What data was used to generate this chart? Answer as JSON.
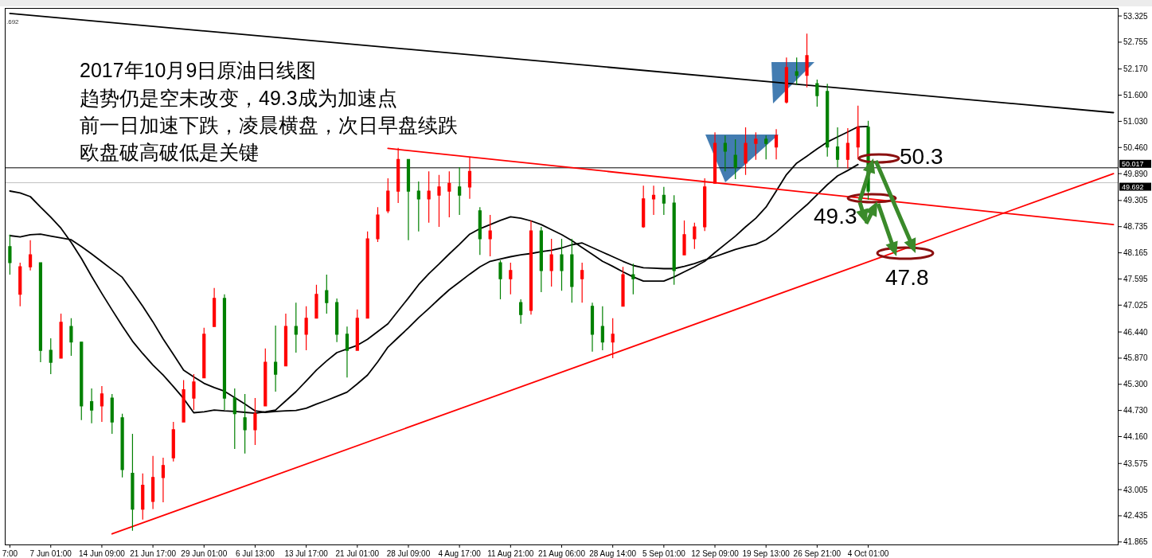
{
  "chart_data": {
    "type": "candlestick",
    "title": "2017年10月9日原油日线图",
    "annotations": [
      "趋势仍是空未改变，49.3成为加速点",
      "前一日加速下跌，凌晨横盘，次日早盘续跌",
      "欧盘破高破低是关键",
      "50.3",
      "49.3",
      "47.8",
      ".692"
    ],
    "categories": [
      "7:00",
      null,
      null,
      null,
      "7 Jun 01:00",
      null,
      null,
      null,
      null,
      "14 Jun 09:00",
      null,
      null,
      null,
      null,
      "21 Jun 17:00",
      null,
      null,
      null,
      null,
      "29 Jun 01:00",
      null,
      null,
      null,
      null,
      "6 Jul 13:00",
      null,
      null,
      null,
      null,
      "13 Jul 17:00",
      null,
      null,
      null,
      null,
      "21 Jul 01:00",
      null,
      null,
      null,
      null,
      "28 Jul 09:00",
      null,
      null,
      null,
      null,
      "4 Aug 17:00",
      null,
      null,
      null,
      null,
      "11 Aug 21:00",
      null,
      null,
      null,
      null,
      "21 Aug 06:00",
      null,
      null,
      null,
      null,
      "28 Aug 14:00",
      null,
      null,
      null,
      null,
      "5 Sep 01:00",
      null,
      null,
      null,
      null,
      "12 Sep 09:00",
      null,
      null,
      null,
      null,
      "19 Sep 13:00",
      null,
      null,
      null,
      null,
      "26 Sep 21:00",
      null,
      null,
      null,
      null,
      "4 Oct 01:00",
      null,
      null,
      null,
      null,
      null,
      null,
      null,
      null,
      null,
      null,
      null,
      null,
      null,
      null,
      null,
      null,
      null,
      null,
      null,
      null,
      null,
      null,
      null,
      null
    ],
    "ohlc": [
      [
        48.3,
        48.56,
        47.69,
        47.95
      ],
      [
        47.26,
        47.95,
        47.0,
        47.86
      ],
      [
        47.86,
        48.44,
        47.78,
        48.12
      ],
      [
        47.95,
        47.95,
        45.78,
        46.04
      ],
      [
        46.04,
        46.3,
        45.52,
        45.78
      ],
      [
        45.87,
        46.84,
        45.87,
        46.65
      ],
      [
        46.56,
        46.74,
        45.92,
        46.22
      ],
      [
        46.22,
        46.22,
        44.52,
        44.83
      ],
      [
        44.92,
        45.21,
        44.45,
        44.74
      ],
      [
        44.83,
        45.26,
        44.48,
        45.09
      ],
      [
        45.0,
        45.09,
        44.22,
        44.48
      ],
      [
        44.57,
        44.66,
        43.27,
        43.44
      ],
      [
        43.36,
        44.22,
        42.11,
        42.58
      ],
      [
        42.58,
        43.36,
        42.35,
        43.1
      ],
      [
        42.75,
        43.74,
        42.58,
        43.27
      ],
      [
        43.27,
        43.7,
        42.73,
        43.53
      ],
      [
        43.7,
        44.48,
        43.62,
        44.31
      ],
      [
        44.48,
        45.39,
        44.48,
        45.18
      ],
      [
        45.0,
        45.52,
        44.74,
        45.35
      ],
      [
        45.44,
        46.53,
        45.44,
        46.39
      ],
      [
        46.56,
        47.4,
        46.56,
        47.17
      ],
      [
        47.17,
        47.26,
        44.74,
        45.0
      ],
      [
        45.0,
        45.21,
        43.89,
        44.66
      ],
      [
        44.57,
        45.09,
        43.79,
        44.31
      ],
      [
        44.31,
        45.0,
        43.98,
        44.66
      ],
      [
        44.83,
        46.08,
        44.83,
        45.78
      ],
      [
        45.78,
        46.58,
        45.14,
        45.52
      ],
      [
        45.7,
        46.84,
        45.7,
        46.56
      ],
      [
        46.56,
        47.08,
        45.99,
        46.39
      ],
      [
        46.39,
        47.0,
        46.04,
        46.74
      ],
      [
        46.74,
        47.47,
        46.74,
        47.26
      ],
      [
        47.34,
        47.69,
        46.84,
        47.08
      ],
      [
        47.08,
        47.17,
        46.22,
        46.39
      ],
      [
        46.39,
        46.56,
        45.45,
        46.04
      ],
      [
        46.04,
        46.93,
        46.04,
        46.74
      ],
      [
        46.74,
        48.63,
        46.74,
        48.47
      ],
      [
        48.47,
        49.16,
        48.4,
        48.99
      ],
      [
        49.08,
        49.79,
        49.03,
        49.51
      ],
      [
        49.51,
        50.45,
        49.25,
        50.2
      ],
      [
        50.2,
        50.2,
        48.44,
        49.51
      ],
      [
        49.51,
        49.72,
        48.63,
        49.34
      ],
      [
        49.34,
        49.94,
        48.82,
        49.51
      ],
      [
        49.42,
        49.86,
        48.73,
        49.6
      ],
      [
        49.51,
        49.94,
        48.94,
        49.68
      ],
      [
        49.6,
        50.03,
        48.99,
        49.42
      ],
      [
        49.6,
        50.26,
        49.34,
        49.94
      ],
      [
        49.08,
        49.16,
        48.12,
        48.47
      ],
      [
        48.47,
        48.99,
        48.09,
        48.64
      ],
      [
        47.95,
        48.0,
        47.15,
        47.6
      ],
      [
        47.6,
        47.95,
        47.26,
        47.78
      ],
      [
        47.08,
        47.15,
        46.62,
        46.82
      ],
      [
        46.91,
        48.87,
        46.82,
        48.64
      ],
      [
        48.64,
        48.73,
        47.31,
        47.78
      ],
      [
        47.78,
        48.47,
        47.43,
        48.12
      ],
      [
        48.12,
        48.47,
        47.34,
        47.78
      ],
      [
        48.12,
        48.47,
        47.08,
        47.43
      ],
      [
        47.6,
        47.95,
        47.08,
        47.78
      ],
      [
        47.0,
        47.08,
        46.01,
        46.39
      ],
      [
        46.56,
        47.0,
        46.04,
        46.22
      ],
      [
        46.22,
        46.74,
        45.87,
        46.39
      ],
      [
        47.0,
        47.86,
        47.0,
        47.69
      ],
      [
        47.69,
        47.93,
        47.26,
        47.6
      ],
      [
        48.73,
        49.63,
        48.71,
        49.34
      ],
      [
        49.34,
        49.63,
        48.99,
        49.42
      ],
      [
        49.42,
        49.6,
        48.99,
        49.25
      ],
      [
        49.25,
        49.42,
        47.47,
        47.78
      ],
      [
        48.12,
        48.87,
        48.12,
        48.56
      ],
      [
        48.47,
        48.82,
        48.25,
        48.73
      ],
      [
        48.73,
        49.79,
        48.64,
        49.6
      ],
      [
        49.68,
        50.79,
        49.68,
        50.55
      ],
      [
        50.55,
        50.72,
        49.94,
        50.38
      ],
      [
        50.29,
        50.64,
        49.77,
        50.03
      ],
      [
        50.12,
        50.9,
        49.86,
        50.55
      ],
      [
        50.55,
        50.79,
        50.19,
        50.64
      ],
      [
        50.64,
        50.72,
        50.2,
        50.55
      ],
      [
        50.47,
        50.86,
        50.2,
        50.72
      ],
      [
        51.45,
        52.42,
        51.42,
        52.2
      ],
      [
        52.11,
        52.42,
        51.82,
        52.03
      ],
      [
        52.03,
        52.94,
        51.77,
        52.46
      ],
      [
        51.85,
        51.94,
        51.35,
        51.59
      ],
      [
        51.68,
        51.85,
        50.26,
        50.47
      ],
      [
        50.47,
        50.9,
        50.03,
        50.2
      ],
      [
        50.2,
        50.88,
        50.0,
        50.55
      ],
      [
        50.47,
        51.37,
        50.2,
        50.9
      ],
      [
        50.9,
        51.04,
        49.32,
        49.51
      ],
      null,
      null,
      null,
      null,
      null,
      null,
      null,
      null,
      null,
      null,
      null,
      null,
      null,
      null,
      null,
      null,
      null,
      null,
      null,
      null,
      null,
      null,
      null,
      null
    ],
    "colors": [
      "#008000",
      "#ff0000",
      "#ff0000",
      "#008000",
      "#008000",
      "#ff0000",
      "#008000",
      "#008000",
      "#008000",
      "#ff0000",
      "#008000",
      "#008000",
      "#008000",
      "#ff0000",
      "#ff0000",
      "#ff0000",
      "#ff0000",
      "#ff0000",
      "#ff0000",
      "#ff0000",
      "#ff0000",
      "#008000",
      "#008000",
      "#008000",
      "#ff0000",
      "#ff0000",
      "#008000",
      "#ff0000",
      "#008000",
      "#ff0000",
      "#ff0000",
      "#008000",
      "#008000",
      "#008000",
      "#ff0000",
      "#ff0000",
      "#ff0000",
      "#ff0000",
      "#ff0000",
      "#008000",
      "#008000",
      "#ff0000",
      "#ff0000",
      "#ff0000",
      "#008000",
      "#ff0000",
      "#008000",
      "#ff0000",
      "#008000",
      "#ff0000",
      "#008000",
      "#ff0000",
      "#008000",
      "#ff0000",
      "#008000",
      "#008000",
      "#ff0000",
      "#008000",
      "#008000",
      "#ff0000",
      "#ff0000",
      "#008000",
      "#ff0000",
      "#ff0000",
      "#008000",
      "#008000",
      "#ff0000",
      "#ff0000",
      "#ff0000",
      "#ff0000",
      "#008000",
      "#008000",
      "#ff0000",
      "#ff0000",
      "#008000",
      "#ff0000",
      "#ff0000",
      "#008000",
      "#ff0000",
      "#008000",
      "#008000",
      "#008000",
      "#ff0000",
      "#ff0000",
      "#008000",
      null,
      null,
      null,
      null,
      null,
      null,
      null,
      null,
      null,
      null,
      null,
      null,
      null,
      null,
      null,
      null,
      null,
      null,
      null,
      null,
      null,
      null,
      null,
      null
    ],
    "series": [
      {
        "type": "line",
        "color": "#000000",
        "values": [
          49.51,
          49.47,
          49.39,
          49.16,
          48.94,
          48.7,
          48.39,
          48.04,
          47.65,
          47.28,
          46.92,
          46.57,
          46.24,
          45.97,
          45.72,
          45.5,
          45.25,
          44.99,
          44.68,
          44.7,
          44.74,
          44.72,
          44.71,
          44.69,
          44.67,
          44.7,
          44.74,
          44.94,
          45.14,
          45.37,
          45.61,
          45.81,
          45.99,
          46.07,
          46.15,
          46.28,
          46.45,
          46.62,
          46.9,
          47.18,
          47.47,
          47.71,
          47.92,
          48.14,
          48.35,
          48.57,
          48.69,
          48.78,
          48.87,
          48.95,
          48.92,
          48.86,
          48.78,
          48.67,
          48.56,
          48.43,
          48.28,
          48.13,
          47.98,
          47.87,
          47.75,
          47.64,
          47.55,
          47.55,
          47.55,
          47.64,
          47.75,
          47.86,
          47.98,
          48.17,
          48.35,
          48.53,
          48.73,
          48.92,
          49.16,
          49.51,
          49.87,
          50.12,
          50.27,
          50.43,
          50.58,
          50.69,
          50.8,
          50.91,
          50.92,
          null,
          null,
          null,
          null,
          null,
          null,
          null,
          null,
          null,
          null,
          null,
          null,
          null,
          null,
          null,
          null,
          null,
          null,
          null,
          null,
          null,
          null,
          null,
          null
        ]
      },
      {
        "type": "line",
        "color": "#000000",
        "values": [
          48.54,
          48.51,
          48.56,
          48.57,
          48.53,
          48.49,
          48.45,
          48.3,
          48.14,
          47.97,
          47.8,
          47.63,
          47.32,
          47.0,
          46.66,
          46.29,
          45.95,
          45.61,
          45.46,
          45.32,
          45.23,
          45.15,
          45.01,
          44.87,
          44.72,
          44.69,
          44.71,
          44.72,
          44.73,
          44.78,
          44.87,
          44.95,
          45.04,
          45.13,
          45.31,
          45.5,
          45.79,
          46.11,
          46.32,
          46.53,
          46.75,
          46.95,
          47.16,
          47.36,
          47.53,
          47.7,
          47.86,
          47.98,
          48.03,
          48.08,
          48.12,
          48.15,
          48.19,
          48.22,
          48.27,
          48.34,
          48.38,
          48.28,
          48.18,
          48.08,
          47.98,
          47.89,
          47.84,
          47.83,
          47.82,
          47.82,
          47.87,
          47.93,
          48.01,
          48.08,
          48.16,
          48.24,
          48.3,
          48.35,
          48.45,
          48.62,
          48.82,
          49.02,
          49.21,
          49.43,
          49.65,
          49.84,
          49.96,
          50.09,
          null,
          null,
          null,
          null,
          null,
          null,
          null,
          null,
          null,
          null,
          null,
          null,
          null,
          null,
          null,
          null,
          null,
          null,
          null,
          null,
          null,
          null,
          null,
          null,
          null
        ]
      },
      {
        "type": "line",
        "color": "#000000",
        "values": [
          53.38,
          null,
          null,
          null,
          null,
          null,
          null,
          null,
          null,
          null,
          null,
          null,
          null,
          null,
          null,
          null,
          null,
          null,
          null,
          null,
          null,
          null,
          null,
          null,
          null,
          null,
          null,
          null,
          null,
          null,
          null,
          null,
          null,
          null,
          null,
          null,
          null,
          null,
          null,
          null,
          null,
          null,
          null,
          null,
          null,
          null,
          null,
          null,
          null,
          null,
          null,
          null,
          null,
          null,
          null,
          null,
          null,
          null,
          null,
          null,
          null,
          null,
          null,
          null,
          null,
          null,
          null,
          null,
          null,
          null,
          null,
          null,
          null,
          null,
          null,
          null,
          null,
          null,
          null,
          null,
          null,
          null,
          null,
          null,
          null,
          null,
          null,
          null,
          null,
          null,
          null,
          null,
          null,
          null,
          null,
          null,
          null,
          null,
          null,
          null,
          null,
          null,
          null,
          null,
          null,
          null,
          null,
          null,
          51.22
        ]
      },
      {
        "type": "line",
        "color": "#ff0000",
        "values": [
          null,
          null,
          null,
          null,
          null,
          null,
          null,
          null,
          null,
          null,
          null,
          null,
          null,
          null,
          null,
          null,
          null,
          null,
          null,
          null,
          null,
          null,
          null,
          null,
          null,
          null,
          null,
          null,
          null,
          null,
          null,
          null,
          null,
          null,
          null,
          null,
          null,
          50.44,
          null,
          null,
          null,
          null,
          null,
          null,
          null,
          null,
          null,
          null,
          null,
          null,
          null,
          null,
          null,
          null,
          null,
          null,
          null,
          null,
          null,
          null,
          null,
          null,
          null,
          null,
          null,
          null,
          null,
          null,
          null,
          null,
          null,
          null,
          null,
          null,
          null,
          null,
          null,
          null,
          null,
          null,
          null,
          null,
          null,
          null,
          null,
          null,
          null,
          null,
          null,
          null,
          null,
          null,
          null,
          null,
          null,
          null,
          null,
          null,
          null,
          null,
          null,
          null,
          null,
          null,
          null,
          null,
          null,
          null,
          48.78
        ]
      },
      {
        "type": "line",
        "color": "#ff0000",
        "values": [
          null,
          null,
          null,
          null,
          null,
          null,
          null,
          null,
          null,
          null,
          42.04,
          null,
          null,
          null,
          null,
          null,
          null,
          null,
          null,
          null,
          null,
          null,
          null,
          null,
          null,
          null,
          null,
          null,
          null,
          null,
          null,
          null,
          null,
          null,
          null,
          null,
          null,
          null,
          null,
          null,
          null,
          null,
          null,
          null,
          null,
          null,
          null,
          null,
          null,
          null,
          null,
          null,
          null,
          null,
          null,
          null,
          null,
          null,
          null,
          null,
          null,
          null,
          null,
          null,
          null,
          null,
          null,
          null,
          null,
          null,
          null,
          null,
          null,
          null,
          null,
          null,
          null,
          null,
          null,
          null,
          null,
          null,
          null,
          null,
          null,
          null,
          null,
          null,
          null,
          null,
          null,
          null,
          null,
          null,
          null,
          null,
          null,
          null,
          null,
          null,
          null,
          null,
          null,
          null,
          null,
          null,
          null,
          null,
          49.89
        ]
      }
    ],
    "ref_lines": [
      {
        "axis": "y",
        "value": 50.017,
        "label": "50.017",
        "color": "#000000"
      },
      {
        "axis": "y",
        "value": 49.692,
        "label": "49.692",
        "color": "#c0c0c0"
      }
    ],
    "ylim": [
      41.81,
      53.5
    ],
    "yticks": [
      53.325,
      52.755,
      {
        "value": 52.17,
        "label": "52.170"
      },
      {
        "value": 51.6,
        "label": "51.600"
      },
      {
        "value": 51.03,
        "label": "51.030"
      },
      {
        "value": 50.46,
        "label": "50.460"
      },
      {
        "value": 49.89,
        "label": "49.890"
      },
      49.305,
      48.735,
      48.165,
      47.595,
      47.025,
      {
        "value": 46.44,
        "label": "46.440"
      },
      {
        "value": 45.87,
        "label": "45.870"
      },
      {
        "value": 45.3,
        "label": "45.300"
      },
      {
        "value": 44.73,
        "label": "44.730"
      },
      {
        "value": 44.16,
        "label": "44.160"
      },
      43.575,
      43.005,
      42.435,
      41.865
    ]
  }
}
